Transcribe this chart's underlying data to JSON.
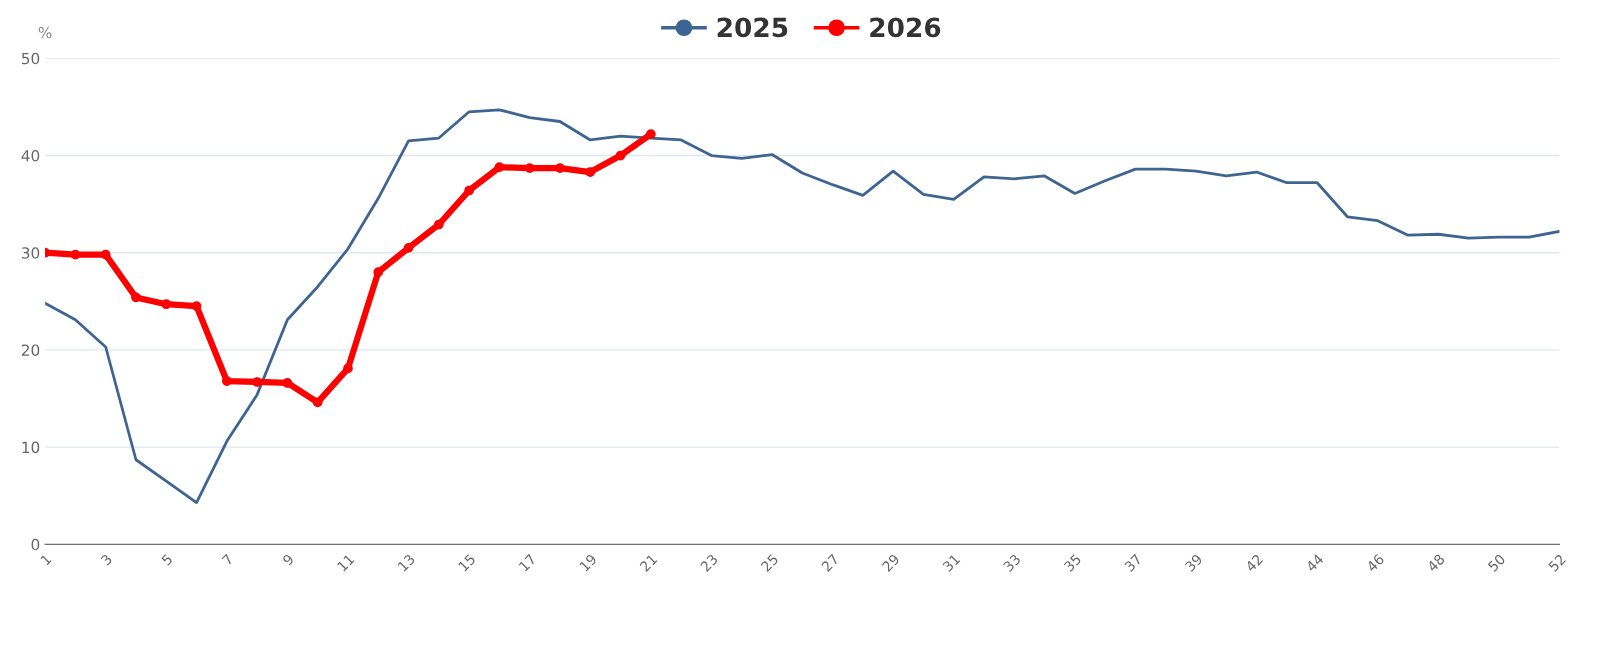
{
  "chart_data": {
    "type": "line",
    "ylabel": "%",
    "categories": [
      "1",
      null,
      "3",
      null,
      "5",
      null,
      "7",
      null,
      "9",
      null,
      "11",
      null,
      "13",
      null,
      "15",
      null,
      "17",
      null,
      "19",
      null,
      "21",
      null,
      "23",
      null,
      "25",
      null,
      "27",
      null,
      "29",
      null,
      "31",
      null,
      "33",
      null,
      "35",
      null,
      "37",
      null,
      "39",
      null,
      "42",
      null,
      "44",
      null,
      "46",
      null,
      "48",
      null,
      "50",
      null,
      "52"
    ],
    "series": [
      {
        "name": "2025",
        "color": "#3e6592",
        "marker": "none",
        "values": [
          24.8,
          23.1,
          20.3,
          8.7,
          6.5,
          4.3,
          10.6,
          15.4,
          23.1,
          26.5,
          30.4,
          35.6,
          41.5,
          41.8,
          44.5,
          44.7,
          43.9,
          43.5,
          41.6,
          42.0,
          41.8,
          41.6,
          40.0,
          39.7,
          40.1,
          38.2,
          37.0,
          35.9,
          38.4,
          36.0,
          35.5,
          37.8,
          37.6,
          37.9,
          36.1,
          37.4,
          38.6,
          38.6,
          38.4,
          37.9,
          38.3,
          37.2,
          37.2,
          33.7,
          33.3,
          31.8,
          31.9,
          31.5,
          31.6,
          31.6,
          32.2
        ]
      },
      {
        "name": "2026",
        "color": "#ff0000",
        "marker": "circle",
        "values": [
          30.0,
          29.8,
          29.8,
          25.4,
          24.7,
          24.5,
          16.8,
          16.7,
          16.6,
          14.6,
          18.1,
          28.0,
          30.5,
          32.9,
          36.4,
          38.8,
          38.7,
          38.7,
          38.3,
          40.0,
          42.2,
          null,
          null,
          null,
          null,
          null,
          null,
          null,
          null,
          null,
          null,
          null,
          null,
          null,
          null,
          null,
          null,
          null,
          null,
          null,
          null,
          null,
          null,
          null,
          null,
          null,
          null,
          null,
          null,
          null,
          null
        ]
      }
    ],
    "ylim": [
      0,
      50
    ],
    "yticks": [
      0,
      10,
      20,
      30,
      40,
      50
    ],
    "grid": "y",
    "legend": "top"
  }
}
